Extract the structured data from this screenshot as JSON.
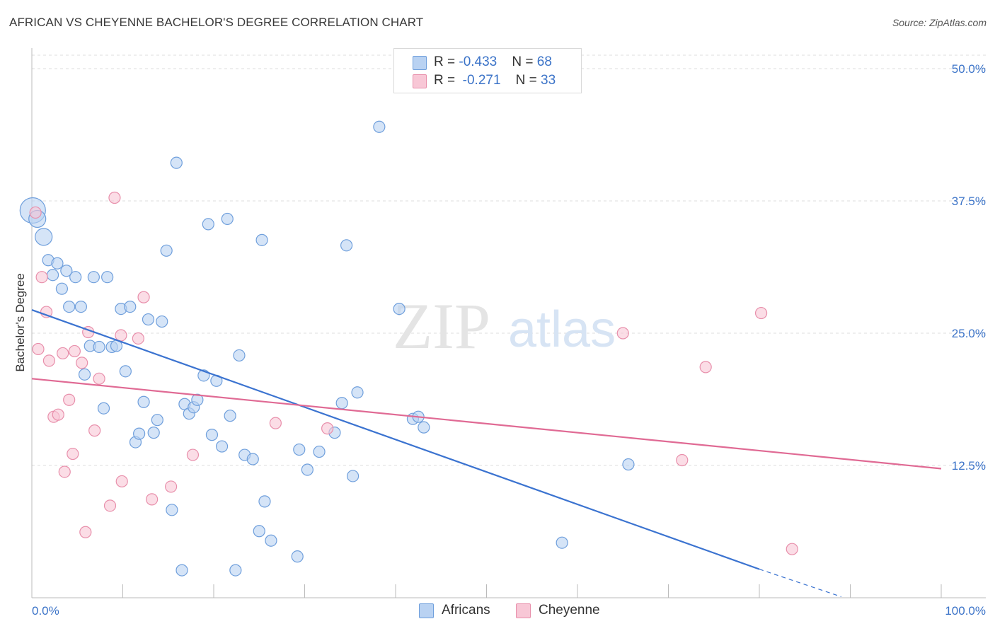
{
  "title": "AFRICAN VS CHEYENNE BACHELOR'S DEGREE CORRELATION CHART",
  "source": "Source: ZipAtlas.com",
  "watermark": {
    "zip": "ZIP",
    "atlas": "atlas"
  },
  "legend": {
    "rows": [
      {
        "r_label": "R = ",
        "r_value": "-0.433",
        "n_label": "N = ",
        "n_value": "68"
      },
      {
        "r_label": "R = ",
        "r_value": "-0.271",
        "n_label": "N = ",
        "n_value": "33"
      }
    ]
  },
  "bottom_legend": {
    "africans": "Africans",
    "cheyenne": "Cheyenne"
  },
  "colors": {
    "africans_fill": "#b9d2f2",
    "africans_stroke": "#6f9fdc",
    "africans_line": "#3b73d0",
    "cheyenne_fill": "#f8c7d6",
    "cheyenne_stroke": "#e88fab",
    "cheyenne_line": "#e06a94",
    "tick_label": "#3b73c8",
    "grid": "#dcdcdc"
  },
  "chart_data": {
    "type": "scatter",
    "title": "AFRICAN VS CHEYENNE BACHELOR'S DEGREE CORRELATION CHART",
    "xlabel": "",
    "ylabel": "Bachelor's Degree",
    "xlim": [
      0,
      100
    ],
    "ylim": [
      0,
      52
    ],
    "x_tick_labels": [
      "0.0%",
      "100.0%"
    ],
    "y_ticks": [
      12.5,
      25.0,
      37.5,
      50.0
    ],
    "y_tick_labels": [
      "12.5%",
      "25.0%",
      "37.5%",
      "50.0%"
    ],
    "grid": "horizontal dashed",
    "series": [
      {
        "name": "Africans",
        "R": -0.433,
        "N": 68,
        "trend": {
          "x": [
            0,
            80
          ],
          "y": [
            27.2,
            2.7
          ],
          "dashed_to": [
            89,
            0.1
          ]
        },
        "points": [
          [
            0.1,
            36.6,
            3
          ],
          [
            0.6,
            35.8,
            2
          ],
          [
            1.3,
            34.1,
            2
          ],
          [
            1.8,
            31.9,
            1
          ],
          [
            2.3,
            30.5,
            1
          ],
          [
            2.8,
            31.6,
            1
          ],
          [
            3.3,
            29.2,
            1
          ],
          [
            3.8,
            30.9,
            1
          ],
          [
            4.1,
            27.5,
            1
          ],
          [
            4.8,
            30.3,
            1
          ],
          [
            5.4,
            27.5,
            1
          ],
          [
            5.8,
            21.1,
            1
          ],
          [
            6.4,
            23.8,
            1
          ],
          [
            6.8,
            30.3,
            1
          ],
          [
            7.4,
            23.7,
            1
          ],
          [
            7.9,
            17.9,
            1
          ],
          [
            8.3,
            30.3,
            1
          ],
          [
            8.8,
            23.7,
            1
          ],
          [
            9.3,
            23.8,
            1
          ],
          [
            9.8,
            27.3,
            1
          ],
          [
            10.3,
            21.4,
            1
          ],
          [
            10.8,
            27.5,
            1
          ],
          [
            11.4,
            14.7,
            1
          ],
          [
            11.8,
            15.5,
            1
          ],
          [
            12.3,
            18.5,
            1
          ],
          [
            12.8,
            26.3,
            1
          ],
          [
            13.4,
            15.6,
            1
          ],
          [
            13.8,
            16.8,
            1
          ],
          [
            14.3,
            26.1,
            1
          ],
          [
            14.8,
            32.8,
            1
          ],
          [
            15.4,
            8.3,
            1
          ],
          [
            15.9,
            41.1,
            1
          ],
          [
            16.5,
            2.6,
            1
          ],
          [
            16.8,
            18.3,
            1
          ],
          [
            17.3,
            17.4,
            1
          ],
          [
            17.8,
            18.0,
            1
          ],
          [
            18.2,
            18.7,
            1
          ],
          [
            18.9,
            21.0,
            1
          ],
          [
            19.4,
            35.3,
            1
          ],
          [
            19.8,
            15.4,
            1
          ],
          [
            20.3,
            20.5,
            1
          ],
          [
            20.9,
            14.3,
            1
          ],
          [
            21.5,
            35.8,
            1
          ],
          [
            21.8,
            17.2,
            1
          ],
          [
            22.4,
            2.6,
            1
          ],
          [
            22.8,
            22.9,
            1
          ],
          [
            23.4,
            13.5,
            1
          ],
          [
            24.3,
            13.1,
            1
          ],
          [
            25.3,
            33.8,
            1
          ],
          [
            25.6,
            9.1,
            1
          ],
          [
            26.3,
            5.4,
            1
          ],
          [
            25.0,
            6.3,
            1
          ],
          [
            29.4,
            14.0,
            1
          ],
          [
            29.2,
            3.9,
            1
          ],
          [
            30.3,
            12.1,
            1
          ],
          [
            31.6,
            13.8,
            1
          ],
          [
            33.3,
            15.6,
            1
          ],
          [
            34.6,
            33.3,
            1
          ],
          [
            35.3,
            11.5,
            1
          ],
          [
            34.1,
            18.4,
            1
          ],
          [
            35.8,
            19.4,
            1
          ],
          [
            38.2,
            44.5,
            1
          ],
          [
            40.4,
            27.3,
            1
          ],
          [
            41.9,
            16.9,
            1
          ],
          [
            42.5,
            17.1,
            1
          ],
          [
            43.1,
            16.1,
            1
          ],
          [
            65.6,
            12.6,
            1
          ],
          [
            58.3,
            5.2,
            1
          ]
        ]
      },
      {
        "name": "Cheyenne",
        "R": -0.271,
        "N": 33,
        "trend": {
          "x": [
            0,
            100
          ],
          "y": [
            20.7,
            12.2
          ]
        },
        "points": [
          [
            0.4,
            36.4,
            1
          ],
          [
            0.7,
            23.5,
            1
          ],
          [
            1.1,
            30.3,
            1
          ],
          [
            1.6,
            27.0,
            1
          ],
          [
            1.9,
            22.4,
            1
          ],
          [
            2.4,
            17.1,
            1
          ],
          [
            2.9,
            17.3,
            1
          ],
          [
            3.4,
            23.1,
            1
          ],
          [
            3.6,
            11.9,
            1
          ],
          [
            4.1,
            18.7,
            1
          ],
          [
            4.5,
            13.6,
            1
          ],
          [
            4.7,
            23.3,
            1
          ],
          [
            5.5,
            22.2,
            1
          ],
          [
            5.9,
            6.2,
            1
          ],
          [
            6.2,
            25.1,
            1
          ],
          [
            6.9,
            15.8,
            1
          ],
          [
            7.4,
            20.7,
            1
          ],
          [
            8.6,
            8.7,
            1
          ],
          [
            9.1,
            37.8,
            1
          ],
          [
            9.8,
            24.8,
            1
          ],
          [
            9.9,
            11.0,
            1
          ],
          [
            11.7,
            24.5,
            1
          ],
          [
            12.3,
            28.4,
            1
          ],
          [
            13.2,
            9.3,
            1
          ],
          [
            15.3,
            10.5,
            1
          ],
          [
            17.7,
            13.5,
            1
          ],
          [
            26.8,
            16.5,
            1
          ],
          [
            32.5,
            16.0,
            1
          ],
          [
            65.0,
            25.0,
            1
          ],
          [
            71.5,
            13.0,
            1
          ],
          [
            74.1,
            21.8,
            1
          ],
          [
            80.2,
            26.9,
            1
          ],
          [
            83.6,
            4.6,
            1
          ]
        ]
      }
    ]
  }
}
